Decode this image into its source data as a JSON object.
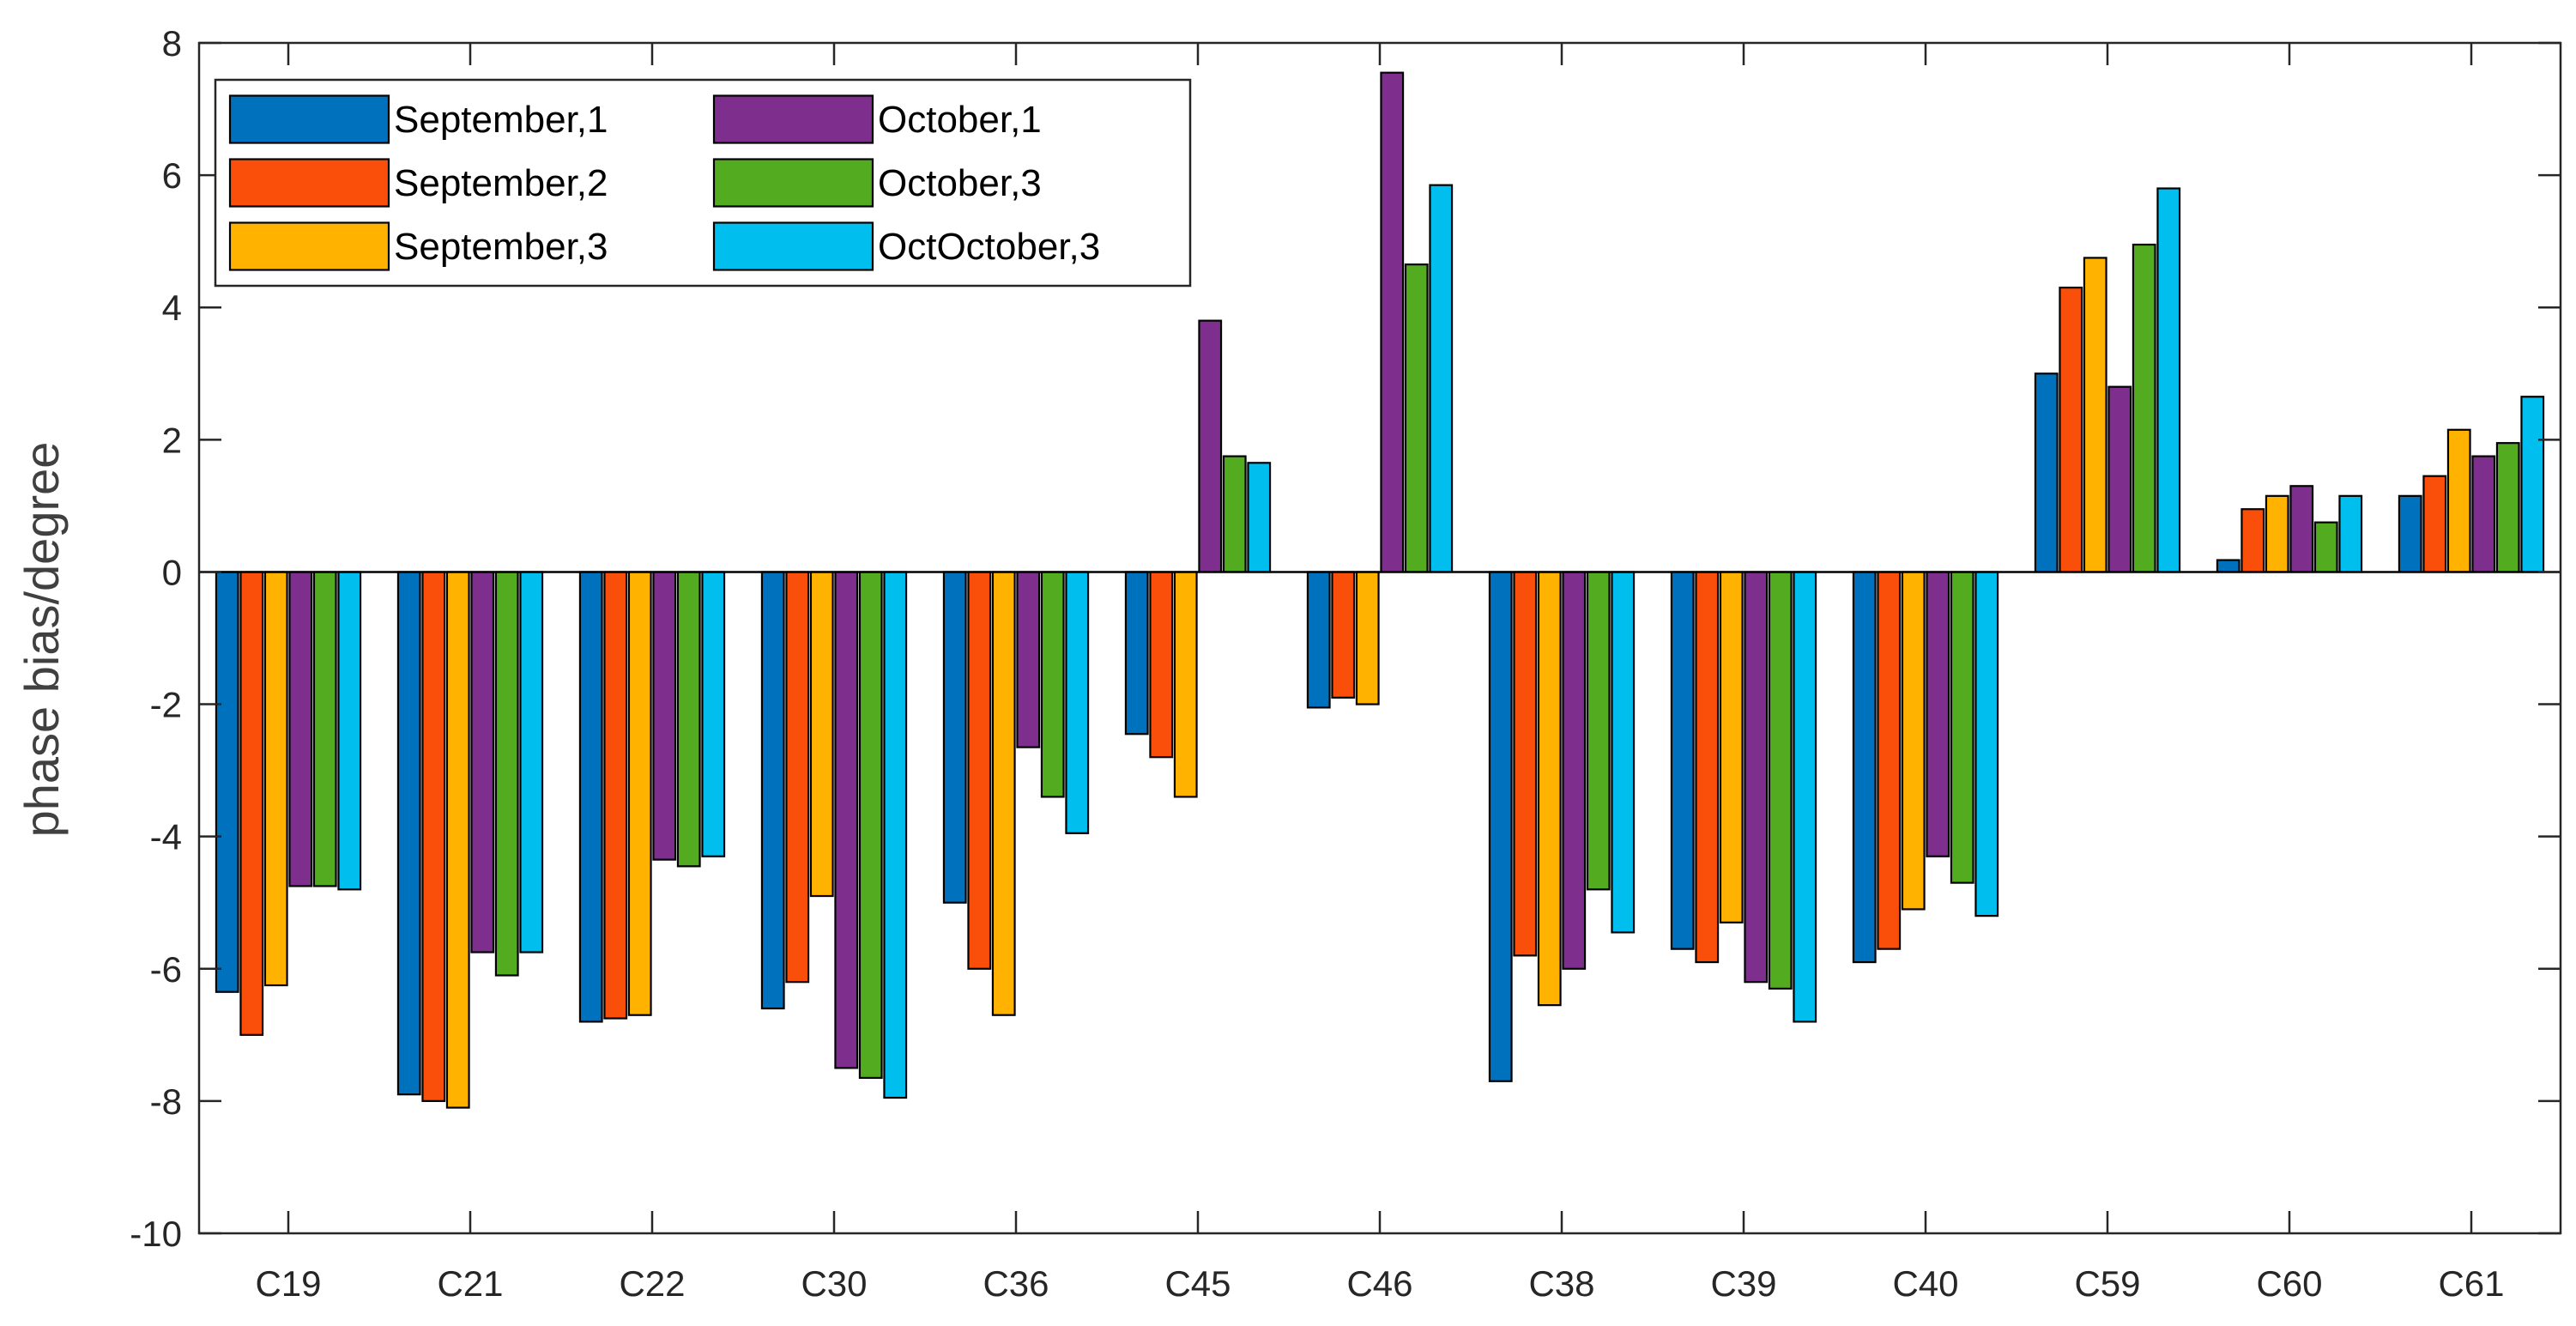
{
  "chart_data": {
    "type": "bar",
    "title": "",
    "xlabel": "",
    "ylabel": "phase bias/degree",
    "ylim": [
      -10,
      8
    ],
    "yticks": [
      -10,
      -8,
      -6,
      -4,
      -2,
      0,
      2,
      4,
      6,
      8
    ],
    "grid": false,
    "legend_position": "top-left",
    "categories": [
      "C19",
      "C21",
      "C22",
      "C30",
      "C36",
      "C45",
      "C46",
      "C38",
      "C39",
      "C40",
      "C59",
      "C60",
      "C61"
    ],
    "series": [
      {
        "name": "September,1",
        "color": "#0072BD",
        "values": [
          -6.35,
          -7.9,
          -6.8,
          -6.6,
          -5.0,
          -2.45,
          -2.05,
          -7.7,
          -5.7,
          -5.9,
          3.0,
          0.18,
          1.15
        ]
      },
      {
        "name": "September,2",
        "color": "#F94F0A",
        "values": [
          -7.0,
          -8.0,
          -6.75,
          -6.2,
          -6.0,
          -2.8,
          -1.9,
          -5.8,
          -5.9,
          -5.7,
          4.3,
          0.95,
          1.45
        ]
      },
      {
        "name": "September,3",
        "color": "#FFB300",
        "values": [
          -6.25,
          -8.1,
          -6.7,
          -4.9,
          -6.7,
          -3.4,
          -2.0,
          -6.55,
          -5.3,
          -5.1,
          4.75,
          1.15,
          2.15
        ]
      },
      {
        "name": "October,1",
        "color": "#7E2F8E",
        "values": [
          -4.75,
          -5.75,
          -4.35,
          -7.5,
          -2.65,
          3.8,
          7.55,
          -6.0,
          -6.2,
          -4.3,
          2.8,
          1.3,
          1.75
        ]
      },
      {
        "name": "October,3",
        "color": "#53AC1F",
        "values": [
          -4.75,
          -6.1,
          -4.45,
          -7.65,
          -3.4,
          1.75,
          4.65,
          -4.8,
          -6.3,
          -4.7,
          4.95,
          0.75,
          1.95
        ]
      },
      {
        "name": "OctOctober,3",
        "color": "#00BFEF",
        "values": [
          -4.8,
          -5.75,
          -4.3,
          -7.95,
          -3.95,
          1.65,
          5.85,
          -5.45,
          -6.8,
          -5.2,
          5.8,
          1.15,
          2.65
        ]
      }
    ]
  }
}
